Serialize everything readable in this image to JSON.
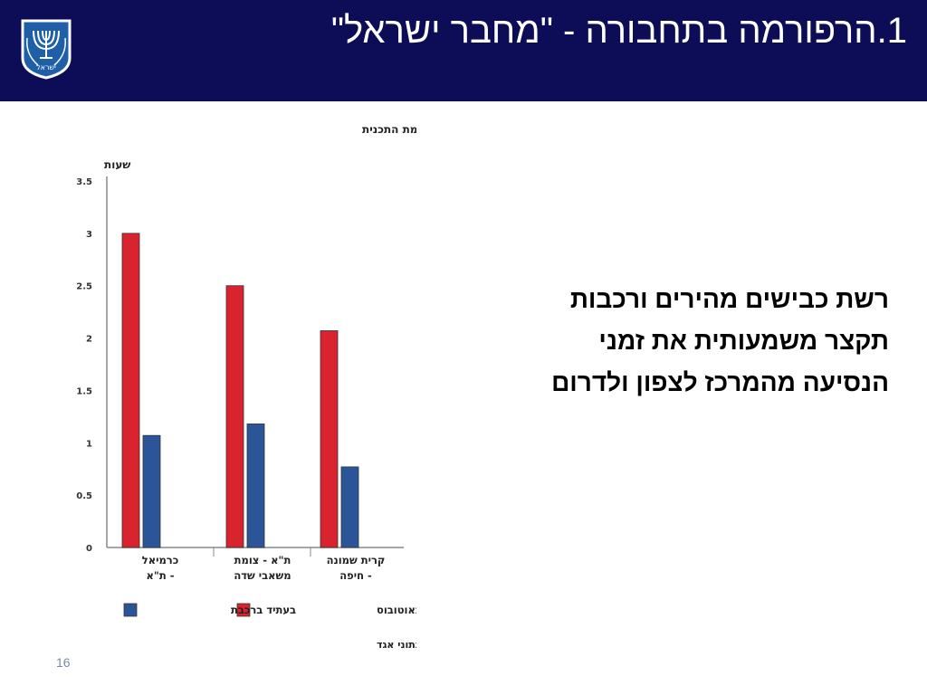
{
  "header": {
    "title": "1.הרפורמה בתחבורה - \"מחבר ישראל\"",
    "background": "#0d0d57"
  },
  "emblem": {
    "icon": "menorah-emblem-icon",
    "text": "ישראל"
  },
  "main_text": {
    "lines": [
      "רשת כבישים מהירים ורכבות",
      "תקצר משמעותית את זמני",
      "הנסיעה מהמרכז לצפון ולדרום"
    ]
  },
  "slide_number": "16",
  "chart_data": {
    "type": "bar",
    "title": "זמני נסיעה היום ולאחר השלמת התכנית",
    "ylabel": "שעות",
    "ylim": [
      0,
      3.5
    ],
    "yticks": [
      "0",
      "0.5",
      "1",
      "1.5",
      "2",
      "2.5",
      "3",
      "3.5"
    ],
    "categories": [
      [
        "כרמיאל",
        "- ת\"א"
      ],
      [
        "ת\"א - צומת",
        "משאבי שדה"
      ],
      [
        "קרית שמונה",
        "- חיפה"
      ]
    ],
    "series": [
      {
        "name": "היום באוטובוס",
        "color": "#d9232e",
        "values": [
          3.0,
          2.5,
          2.07
        ]
      },
      {
        "name": "בעתיד ברכבת",
        "color": "#2a5599",
        "values": [
          1.07,
          1.18,
          0.77
        ]
      }
    ],
    "legend_position": "bottom",
    "source": "מקור: עיבוד משרד ראש הממשלה לנתוני אגד"
  }
}
